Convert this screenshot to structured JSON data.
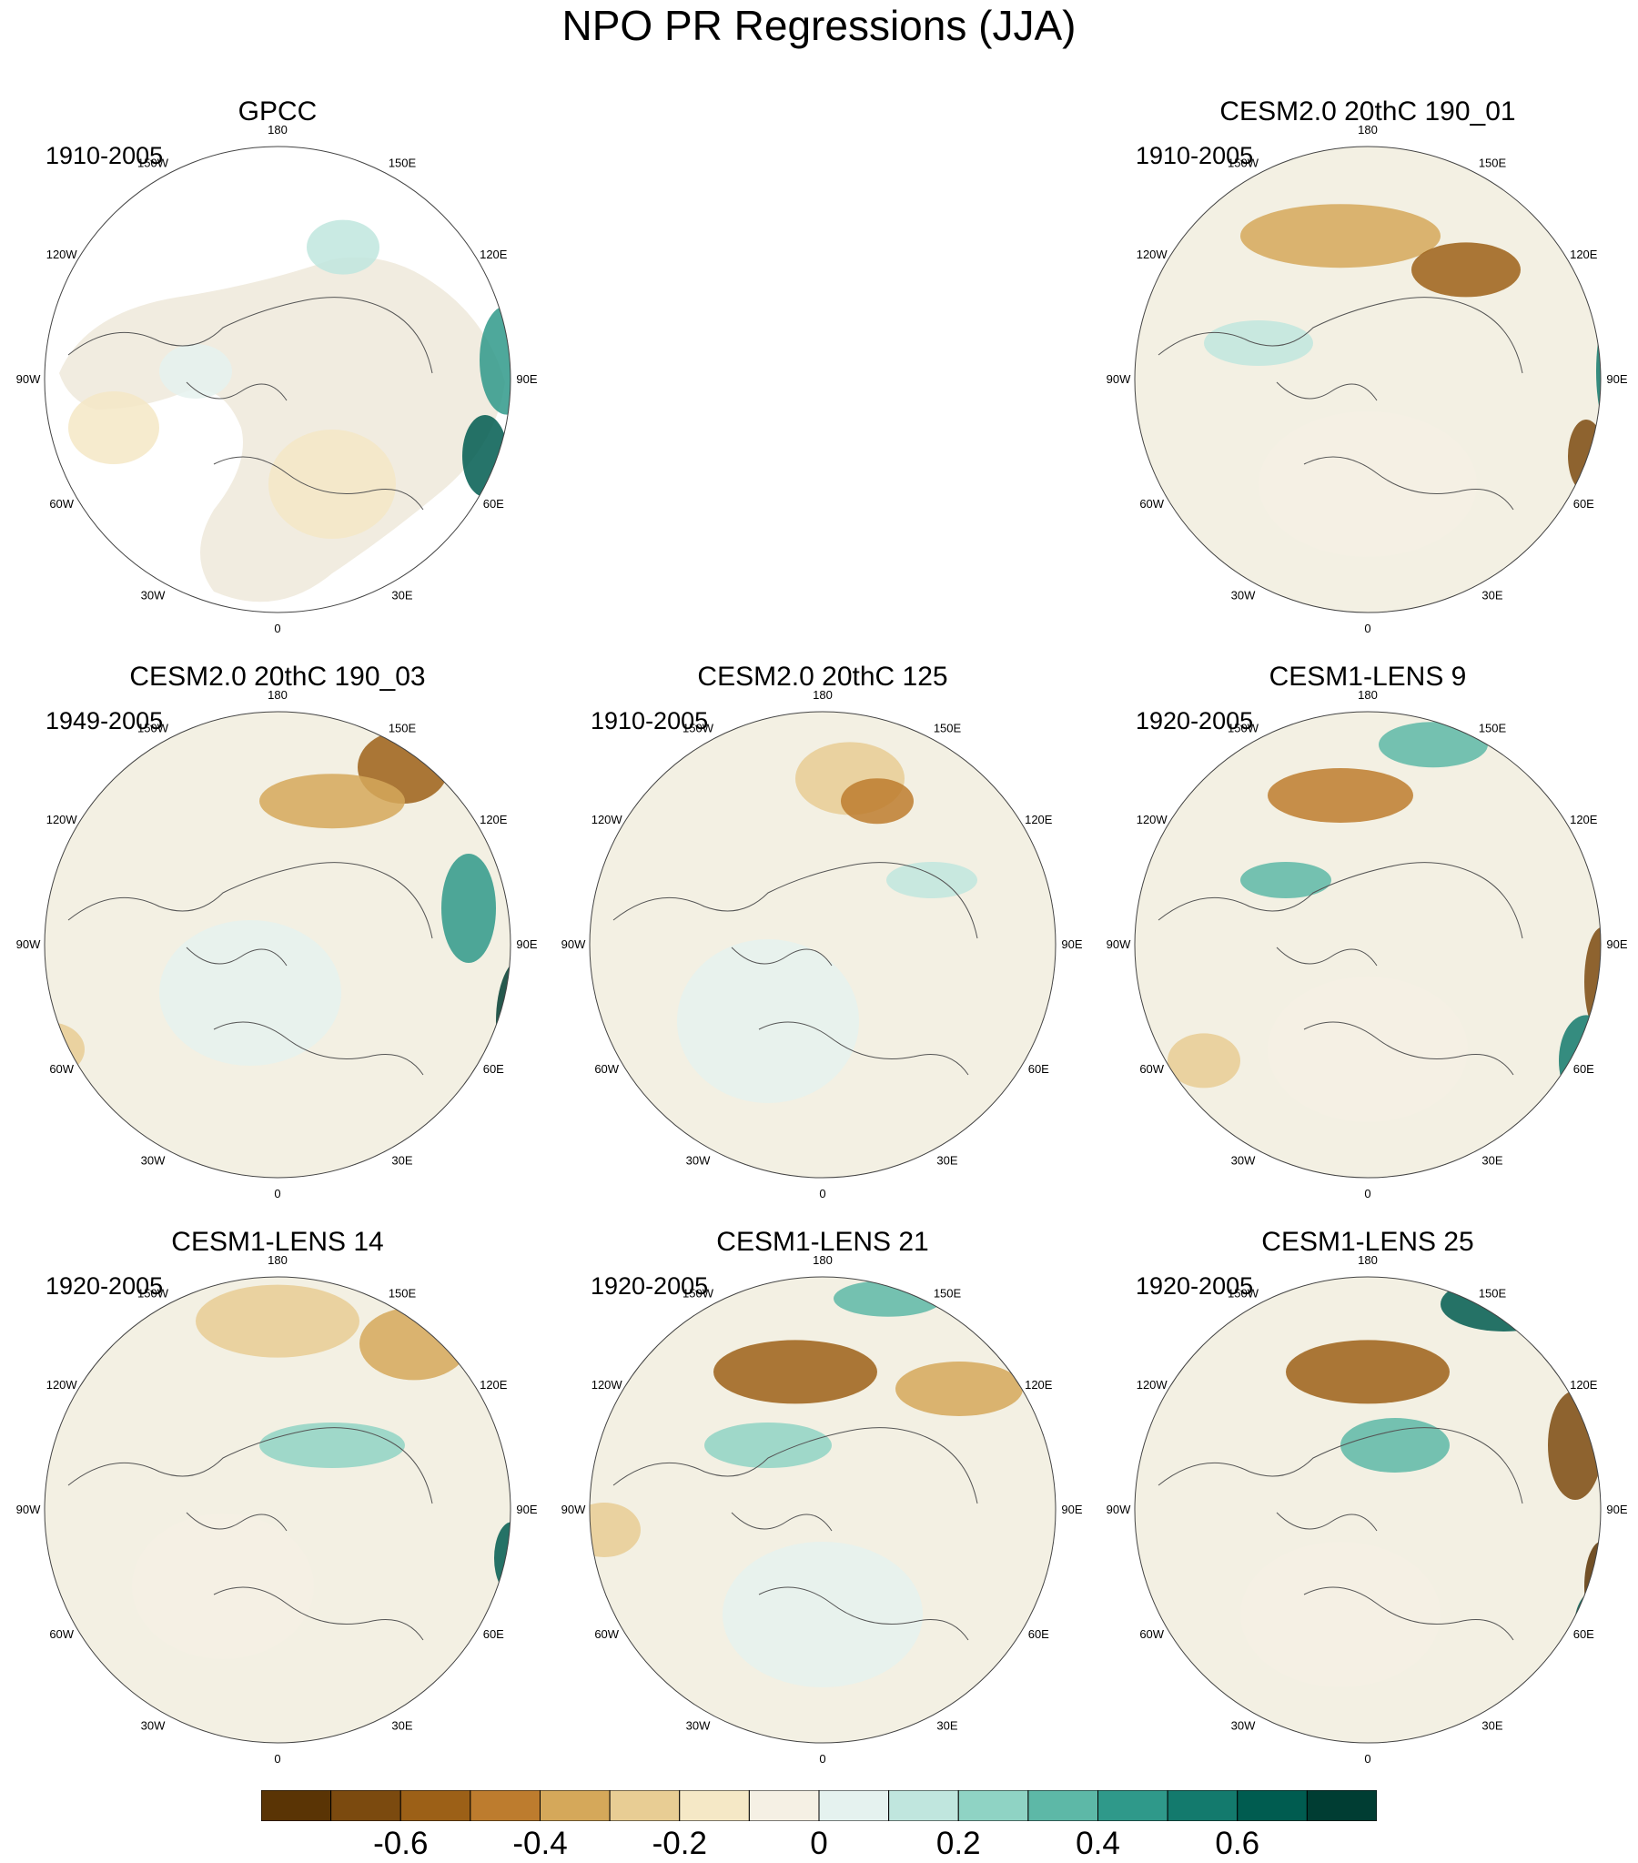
{
  "title": "NPO PR Regressions (JJA)",
  "lon_labels": [
    "180",
    "150E",
    "120E",
    "90E",
    "60E",
    "30E",
    "0",
    "30W",
    "60W",
    "90W",
    "120W",
    "150W"
  ],
  "panels": [
    {
      "id": "gpcc",
      "title": "GPCC",
      "period": "1910-2005",
      "observational": true
    },
    {
      "id": "cesm2-190-01",
      "title": "CESM2.0 20thC 190_01",
      "period": "1910-2005"
    },
    {
      "id": "cesm2-190-03",
      "title": "CESM2.0 20thC 190_03",
      "period": "1949-2005"
    },
    {
      "id": "cesm2-125",
      "title": "CESM2.0 20thC 125",
      "period": "1910-2005"
    },
    {
      "id": "lens-9",
      "title": "CESM1-LENS 9",
      "period": "1920-2005"
    },
    {
      "id": "lens-14",
      "title": "CESM1-LENS 14",
      "period": "1920-2005"
    },
    {
      "id": "lens-21",
      "title": "CESM1-LENS 21",
      "period": "1920-2005"
    },
    {
      "id": "lens-25",
      "title": "CESM1-LENS 25",
      "period": "1920-2005"
    }
  ],
  "colorbar": {
    "colors": [
      "#5a3405",
      "#7b4a0f",
      "#9c6017",
      "#bd7c2e",
      "#d5a85a",
      "#e8cd94",
      "#f5e8c6",
      "#f5f0e4",
      "#e5f2ef",
      "#c0e6de",
      "#8fd3c4",
      "#5db8a7",
      "#2f998a",
      "#137a6d",
      "#005c50",
      "#003d33"
    ],
    "tick_labels": [
      "-0.6",
      "-0.4",
      "-0.2",
      "0",
      "0.2",
      "0.4",
      "0.6"
    ]
  }
}
